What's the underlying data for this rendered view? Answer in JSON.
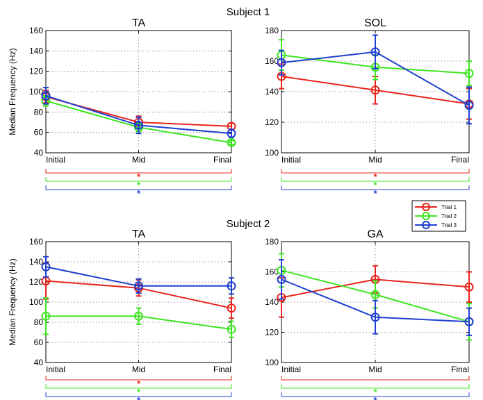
{
  "figure": {
    "subject1_title": "Subject 1",
    "subject2_title": "Subject 2",
    "legend": [
      {
        "label": "Trial 1",
        "color": "#e8251e"
      },
      {
        "label": "Trial 2",
        "color": "#3de61f"
      },
      {
        "label": "Trial 3",
        "color": "#1e3fcf"
      }
    ]
  },
  "chart_data": [
    {
      "type": "line",
      "title": "TA",
      "subject": "Subject 1",
      "ylabel": "Median Frequency (Hz)",
      "xlabel": "",
      "categories": [
        "Initial",
        "Mid",
        "Final"
      ],
      "ylim": [
        40,
        160
      ],
      "yticks": [
        40,
        60,
        80,
        100,
        120,
        140,
        160
      ],
      "grid": true,
      "series": [
        {
          "name": "Trial 1",
          "color": "#e8251e",
          "values": [
            95,
            70,
            66
          ],
          "errors": [
            6,
            6,
            3
          ]
        },
        {
          "name": "Trial 2",
          "color": "#3de61f",
          "values": [
            91,
            65,
            50
          ],
          "errors": [
            5,
            4,
            2
          ]
        },
        {
          "name": "Trial 3",
          "color": "#1e3fcf",
          "values": [
            96,
            67,
            59
          ],
          "errors": [
            8,
            8,
            4
          ]
        }
      ],
      "significance": [
        "*",
        "*",
        "*"
      ]
    },
    {
      "type": "line",
      "title": "SOL",
      "subject": "Subject 1",
      "ylabel": "",
      "xlabel": "",
      "categories": [
        "Initial",
        "Mid",
        "Final"
      ],
      "ylim": [
        100,
        180
      ],
      "yticks": [
        100,
        120,
        140,
        160,
        180
      ],
      "grid": true,
      "series": [
        {
          "name": "Trial 1",
          "color": "#e8251e",
          "values": [
            150,
            141,
            132
          ],
          "errors": [
            8,
            9,
            10
          ]
        },
        {
          "name": "Trial 2",
          "color": "#3de61f",
          "values": [
            164,
            156,
            152
          ],
          "errors": [
            10,
            8,
            8
          ]
        },
        {
          "name": "Trial 3",
          "color": "#1e3fcf",
          "values": [
            159,
            166,
            131
          ],
          "errors": [
            8,
            11,
            12
          ]
        }
      ],
      "significance": [
        "*",
        "*",
        "*"
      ]
    },
    {
      "type": "line",
      "title": "TA",
      "subject": "Subject 2",
      "ylabel": "Median Frequency (Hz)",
      "xlabel": "",
      "categories": [
        "Initial",
        "Mid",
        "Final"
      ],
      "ylim": [
        40,
        160
      ],
      "yticks": [
        40,
        60,
        80,
        100,
        120,
        140,
        160
      ],
      "grid": true,
      "series": [
        {
          "name": "Trial 1",
          "color": "#e8251e",
          "values": [
            121,
            114,
            94
          ],
          "errors": [
            18,
            8,
            10
          ]
        },
        {
          "name": "Trial 2",
          "color": "#3de61f",
          "values": [
            86,
            86,
            73
          ],
          "errors": [
            18,
            8,
            8
          ]
        },
        {
          "name": "Trial 3",
          "color": "#1e3fcf",
          "values": [
            135,
            116,
            116
          ],
          "errors": [
            10,
            7,
            8
          ]
        }
      ],
      "significance": [
        "*",
        "*",
        "*"
      ]
    },
    {
      "type": "line",
      "title": "GA",
      "subject": "Subject 2",
      "ylabel": "",
      "xlabel": "",
      "categories": [
        "Initial",
        "Mid",
        "Final"
      ],
      "ylim": [
        100,
        180
      ],
      "yticks": [
        100,
        120,
        140,
        160,
        180
      ],
      "grid": true,
      "series": [
        {
          "name": "Trial 1",
          "color": "#e8251e",
          "values": [
            143,
            155,
            150
          ],
          "errors": [
            13,
            9,
            10
          ]
        },
        {
          "name": "Trial 2",
          "color": "#3de61f",
          "values": [
            161,
            145,
            127
          ],
          "errors": [
            11,
            9,
            12
          ]
        },
        {
          "name": "Trial 3",
          "color": "#1e3fcf",
          "values": [
            155,
            130,
            127
          ],
          "errors": [
            13,
            11,
            9
          ]
        }
      ],
      "significance": [
        "",
        "*",
        "*"
      ]
    }
  ]
}
